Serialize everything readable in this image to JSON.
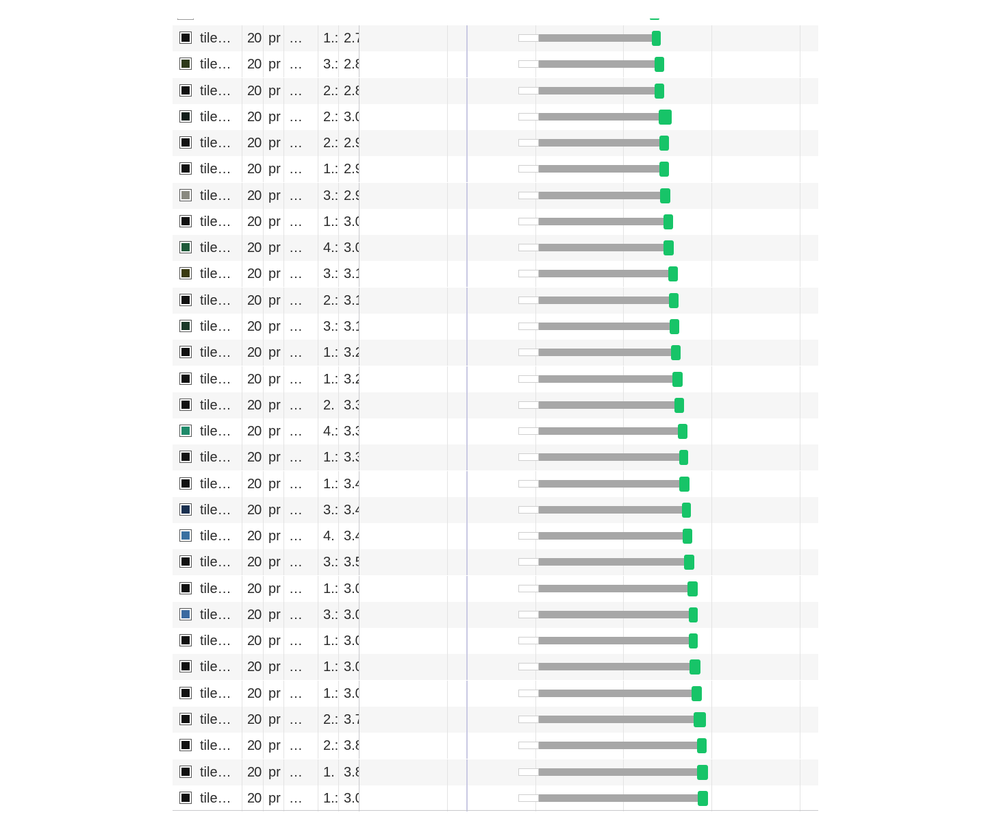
{
  "network": {
    "rows": [
      {
        "name": "tile…",
        "status": "20",
        "type": "pr",
        "initiator": "…",
        "size": "1.:",
        "time": "2.7",
        "thumb": "#111111",
        "wait": [
          505,
          535
        ],
        "ttfb": [
          535,
          700
        ],
        "dl": [
          700,
          713
        ]
      },
      {
        "name": "tile…",
        "status": "20",
        "type": "pr",
        "initiator": "…",
        "size": "3.:",
        "time": "2.8",
        "thumb": "#2e3a1a",
        "wait": [
          505,
          535
        ],
        "ttfb": [
          535,
          704
        ],
        "dl": [
          704,
          718
        ]
      },
      {
        "name": "tile…",
        "status": "20",
        "type": "pr",
        "initiator": "…",
        "size": "2.:",
        "time": "2.8",
        "thumb": "#111111",
        "wait": [
          505,
          535
        ],
        "ttfb": [
          535,
          704
        ],
        "dl": [
          704,
          718
        ]
      },
      {
        "name": "tile…",
        "status": "20",
        "type": "pr",
        "initiator": "…",
        "size": "2.:",
        "time": "3.0",
        "thumb": "#121d1a",
        "wait": [
          505,
          535
        ],
        "ttfb": [
          535,
          710
        ],
        "dl": [
          710,
          729
        ]
      },
      {
        "name": "tile…",
        "status": "20",
        "type": "pr",
        "initiator": "…",
        "size": "2.:",
        "time": "2.9",
        "thumb": "#111111",
        "wait": [
          505,
          535
        ],
        "ttfb": [
          535,
          711
        ],
        "dl": [
          711,
          725
        ]
      },
      {
        "name": "tile…",
        "status": "20",
        "type": "pr",
        "initiator": "…",
        "size": "1.:",
        "time": "2.9",
        "thumb": "#111111",
        "wait": [
          505,
          535
        ],
        "ttfb": [
          535,
          711
        ],
        "dl": [
          711,
          725
        ]
      },
      {
        "name": "tile…",
        "status": "20",
        "type": "pr",
        "initiator": "…",
        "size": "3.:",
        "time": "2.9",
        "thumb": "#8a8a80",
        "wait": [
          505,
          535
        ],
        "ttfb": [
          535,
          712
        ],
        "dl": [
          712,
          727
        ]
      },
      {
        "name": "tile…",
        "status": "20",
        "type": "pr",
        "initiator": "…",
        "size": "1.:",
        "time": "3.0",
        "thumb": "#111111",
        "wait": [
          505,
          535
        ],
        "ttfb": [
          535,
          717
        ],
        "dl": [
          717,
          731
        ]
      },
      {
        "name": "tile…",
        "status": "20",
        "type": "pr",
        "initiator": "…",
        "size": "4.:",
        "time": "3.0",
        "thumb": "#1e5a3a",
        "wait": [
          505,
          535
        ],
        "ttfb": [
          535,
          717
        ],
        "dl": [
          717,
          732
        ]
      },
      {
        "name": "tile…",
        "status": "20",
        "type": "pr",
        "initiator": "…",
        "size": "3.:",
        "time": "3.1",
        "thumb": "#3a3a10",
        "wait": [
          505,
          535
        ],
        "ttfb": [
          535,
          724
        ],
        "dl": [
          724,
          738
        ]
      },
      {
        "name": "tile…",
        "status": "20",
        "type": "pr",
        "initiator": "…",
        "size": "2.:",
        "time": "3.1",
        "thumb": "#111111",
        "wait": [
          505,
          535
        ],
        "ttfb": [
          535,
          725
        ],
        "dl": [
          725,
          739
        ]
      },
      {
        "name": "tile…",
        "status": "20",
        "type": "pr",
        "initiator": "…",
        "size": "3.:",
        "time": "3.1",
        "thumb": "#1c3a2a",
        "wait": [
          505,
          535
        ],
        "ttfb": [
          535,
          726
        ],
        "dl": [
          726,
          740
        ]
      },
      {
        "name": "tile…",
        "status": "20",
        "type": "pr",
        "initiator": "…",
        "size": "1.:",
        "time": "3.2",
        "thumb": "#111111",
        "wait": [
          505,
          535
        ],
        "ttfb": [
          535,
          728
        ],
        "dl": [
          728,
          742
        ]
      },
      {
        "name": "tile…",
        "status": "20",
        "type": "pr",
        "initiator": "…",
        "size": "1.:",
        "time": "3.2",
        "thumb": "#111111",
        "wait": [
          505,
          535
        ],
        "ttfb": [
          535,
          730
        ],
        "dl": [
          730,
          745
        ]
      },
      {
        "name": "tile…",
        "status": "20",
        "type": "pr",
        "initiator": "…",
        "size": "2.",
        "time": "3.3",
        "thumb": "#111111",
        "wait": [
          505,
          535
        ],
        "ttfb": [
          535,
          733
        ],
        "dl": [
          733,
          747
        ]
      },
      {
        "name": "tile…",
        "status": "20",
        "type": "pr",
        "initiator": "…",
        "size": "4.:",
        "time": "3.3",
        "thumb": "#1f8a6a",
        "wait": [
          505,
          535
        ],
        "ttfb": [
          535,
          738
        ],
        "dl": [
          738,
          752
        ]
      },
      {
        "name": "tile…",
        "status": "20",
        "type": "pr",
        "initiator": "…",
        "size": "1.:",
        "time": "3.3",
        "thumb": "#111111",
        "wait": [
          505,
          535
        ],
        "ttfb": [
          535,
          740
        ],
        "dl": [
          740,
          753
        ]
      },
      {
        "name": "tile…",
        "status": "20",
        "type": "pr",
        "initiator": "…",
        "size": "1.:",
        "time": "3.4",
        "thumb": "#111111",
        "wait": [
          505,
          535
        ],
        "ttfb": [
          535,
          740
        ],
        "dl": [
          740,
          755
        ]
      },
      {
        "name": "tile…",
        "status": "20",
        "type": "pr",
        "initiator": "…",
        "size": "3.:",
        "time": "3.4",
        "thumb": "#1a3050",
        "wait": [
          505,
          535
        ],
        "ttfb": [
          535,
          744
        ],
        "dl": [
          744,
          757
        ]
      },
      {
        "name": "tile…",
        "status": "20",
        "type": "pr",
        "initiator": "…",
        "size": "4.",
        "time": "3.4",
        "thumb": "#3a70a0",
        "wait": [
          505,
          535
        ],
        "ttfb": [
          535,
          745
        ],
        "dl": [
          745,
          759
        ]
      },
      {
        "name": "tile…",
        "status": "20",
        "type": "pr",
        "initiator": "…",
        "size": "3.:",
        "time": "3.5",
        "thumb": "#111111",
        "wait": [
          505,
          535
        ],
        "ttfb": [
          535,
          747
        ],
        "dl": [
          747,
          762
        ]
      },
      {
        "name": "tile…",
        "status": "20",
        "type": "pr",
        "initiator": "…",
        "size": "1.:",
        "time": "3.0",
        "thumb": "#111111",
        "wait": [
          505,
          535
        ],
        "ttfb": [
          535,
          752
        ],
        "dl": [
          752,
          767
        ]
      },
      {
        "name": "tile…",
        "status": "20",
        "type": "pr",
        "initiator": "…",
        "size": "3.:",
        "time": "3.0",
        "thumb": "#3a6aa0",
        "wait": [
          505,
          535
        ],
        "ttfb": [
          535,
          754
        ],
        "dl": [
          754,
          767
        ]
      },
      {
        "name": "tile…",
        "status": "20",
        "type": "pr",
        "initiator": "…",
        "size": "1.:",
        "time": "3.0",
        "thumb": "#111111",
        "wait": [
          505,
          535
        ],
        "ttfb": [
          535,
          754
        ],
        "dl": [
          754,
          767
        ]
      },
      {
        "name": "tile…",
        "status": "20",
        "type": "pr",
        "initiator": "…",
        "size": "1.:",
        "time": "3.0",
        "thumb": "#111111",
        "wait": [
          505,
          535
        ],
        "ttfb": [
          535,
          755
        ],
        "dl": [
          755,
          771
        ]
      },
      {
        "name": "tile…",
        "status": "20",
        "type": "pr",
        "initiator": "…",
        "size": "1.:",
        "time": "3.0",
        "thumb": "#111111",
        "wait": [
          505,
          535
        ],
        "ttfb": [
          535,
          758
        ],
        "dl": [
          758,
          773
        ]
      },
      {
        "name": "tile…",
        "status": "20",
        "type": "pr",
        "initiator": "…",
        "size": "2.:",
        "time": "3.7",
        "thumb": "#111111",
        "wait": [
          505,
          535
        ],
        "ttfb": [
          535,
          761
        ],
        "dl": [
          761,
          779
        ]
      },
      {
        "name": "tile…",
        "status": "20",
        "type": "pr",
        "initiator": "…",
        "size": "2.:",
        "time": "3.8",
        "thumb": "#111111",
        "wait": [
          505,
          535
        ],
        "ttfb": [
          535,
          766
        ],
        "dl": [
          766,
          780
        ]
      },
      {
        "name": "tile…",
        "status": "20",
        "type": "pr",
        "initiator": "…",
        "size": "1.",
        "time": "3.8",
        "thumb": "#111111",
        "wait": [
          505,
          535
        ],
        "ttfb": [
          535,
          766
        ],
        "dl": [
          766,
          782
        ]
      },
      {
        "name": "tile…",
        "status": "20",
        "type": "pr",
        "initiator": "…",
        "size": "1.:",
        "time": "3.0",
        "thumb": "#111111",
        "wait": [
          505,
          535
        ],
        "ttfb": [
          535,
          767
        ],
        "dl": [
          767,
          782
        ]
      }
    ]
  },
  "colors": {
    "download": "#17c468",
    "ttfb": "#a7a7a7",
    "stripe": "#f6f6f6"
  }
}
